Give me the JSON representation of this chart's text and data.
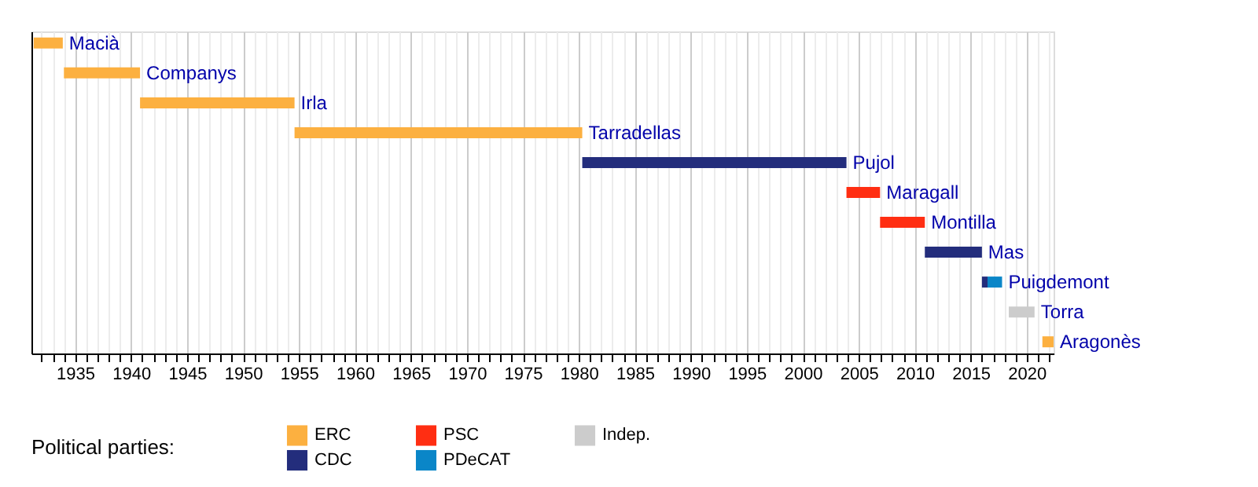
{
  "chart_data": {
    "type": "bar",
    "orientation": "horizontal",
    "categories": [
      "Macià",
      "Companys",
      "Irla",
      "Tarradellas",
      "Pujol",
      "Maragall",
      "Montilla",
      "Mas",
      "Puigdemont",
      "Torra",
      "Aragonès"
    ],
    "series": [
      {
        "name": "ERC",
        "color": "#fcb040",
        "base": [
          1931.3,
          1934.0,
          1940.8,
          1954.6,
          null,
          null,
          null,
          null,
          null,
          null,
          2021.4
        ],
        "values": [
          2.6,
          6.8,
          13.8,
          25.7,
          null,
          null,
          null,
          null,
          null,
          null,
          1.0
        ]
      },
      {
        "name": "PSC",
        "color": "#ff2e12",
        "base": [
          null,
          null,
          null,
          null,
          null,
          2003.9,
          2006.9,
          null,
          null,
          null,
          null
        ],
        "values": [
          null,
          null,
          null,
          null,
          null,
          3.0,
          4.0,
          null,
          null,
          null,
          null
        ]
      },
      {
        "name": "Indep.",
        "color": "#cccccc",
        "base": [
          null,
          null,
          null,
          null,
          null,
          null,
          null,
          null,
          null,
          2018.4,
          null
        ],
        "values": [
          null,
          null,
          null,
          null,
          null,
          null,
          null,
          null,
          null,
          2.3,
          null
        ]
      },
      {
        "name": "CDC",
        "color": "#232d7c",
        "base": [
          null,
          null,
          null,
          null,
          1980.3,
          null,
          null,
          2010.9,
          2016.0,
          null,
          null
        ],
        "values": [
          null,
          null,
          null,
          null,
          23.6,
          null,
          null,
          5.1,
          0.5,
          null,
          null
        ]
      },
      {
        "name": "PDeCAT",
        "color": "#0a86c8",
        "base": [
          null,
          null,
          null,
          null,
          null,
          null,
          null,
          null,
          2016.5,
          null,
          null
        ],
        "values": [
          null,
          null,
          null,
          null,
          null,
          null,
          null,
          null,
          1.3,
          null,
          null
        ]
      }
    ],
    "xlim": [
      1931.1,
      2022.4
    ],
    "xticks": [
      {
        "value": 1932,
        "label": null
      },
      {
        "value": 1933,
        "label": null
      },
      {
        "value": 1934,
        "label": null
      },
      1935,
      {
        "value": 1936,
        "label": null
      },
      {
        "value": 1937,
        "label": null
      },
      {
        "value": 1938,
        "label": null
      },
      {
        "value": 1939,
        "label": null
      },
      1940,
      {
        "value": 1941,
        "label": null
      },
      {
        "value": 1942,
        "label": null
      },
      {
        "value": 1943,
        "label": null
      },
      {
        "value": 1944,
        "label": null
      },
      1945,
      {
        "value": 1946,
        "label": null
      },
      {
        "value": 1947,
        "label": null
      },
      {
        "value": 1948,
        "label": null
      },
      {
        "value": 1949,
        "label": null
      },
      1950,
      {
        "value": 1951,
        "label": null
      },
      {
        "value": 1952,
        "label": null
      },
      {
        "value": 1953,
        "label": null
      },
      {
        "value": 1954,
        "label": null
      },
      1955,
      {
        "value": 1956,
        "label": null
      },
      {
        "value": 1957,
        "label": null
      },
      {
        "value": 1958,
        "label": null
      },
      {
        "value": 1959,
        "label": null
      },
      1960,
      {
        "value": 1961,
        "label": null
      },
      {
        "value": 1962,
        "label": null
      },
      {
        "value": 1963,
        "label": null
      },
      {
        "value": 1964,
        "label": null
      },
      1965,
      {
        "value": 1966,
        "label": null
      },
      {
        "value": 1967,
        "label": null
      },
      {
        "value": 1968,
        "label": null
      },
      {
        "value": 1969,
        "label": null
      },
      1970,
      {
        "value": 1971,
        "label": null
      },
      {
        "value": 1972,
        "label": null
      },
      {
        "value": 1973,
        "label": null
      },
      {
        "value": 1974,
        "label": null
      },
      1975,
      {
        "value": 1976,
        "label": null
      },
      {
        "value": 1977,
        "label": null
      },
      {
        "value": 1978,
        "label": null
      },
      {
        "value": 1979,
        "label": null
      },
      1980,
      {
        "value": 1981,
        "label": null
      },
      {
        "value": 1982,
        "label": null
      },
      {
        "value": 1983,
        "label": null
      },
      {
        "value": 1984,
        "label": null
      },
      1985,
      {
        "value": 1986,
        "label": null
      },
      {
        "value": 1987,
        "label": null
      },
      {
        "value": 1988,
        "label": null
      },
      {
        "value": 1989,
        "label": null
      },
      1990,
      {
        "value": 1991,
        "label": null
      },
      {
        "value": 1992,
        "label": null
      },
      {
        "value": 1993,
        "label": null
      },
      {
        "value": 1994,
        "label": null
      },
      1995,
      {
        "value": 1996,
        "label": null
      },
      {
        "value": 1997,
        "label": null
      },
      {
        "value": 1998,
        "label": null
      },
      {
        "value": 1999,
        "label": null
      },
      2000,
      {
        "value": 2001,
        "label": null
      },
      {
        "value": 2002,
        "label": null
      },
      {
        "value": 2003,
        "label": null
      },
      {
        "value": 2004,
        "label": null
      },
      2005,
      {
        "value": 2006,
        "label": null
      },
      {
        "value": 2007,
        "label": null
      },
      {
        "value": 2008,
        "label": null
      },
      {
        "value": 2009,
        "label": null
      },
      2010,
      {
        "value": 2011,
        "label": null
      },
      {
        "value": 2012,
        "label": null
      },
      {
        "value": 2013,
        "label": null
      },
      {
        "value": 2014,
        "label": null
      },
      2015,
      {
        "value": 2016,
        "label": null
      },
      {
        "value": 2017,
        "label": null
      },
      {
        "value": 2018,
        "label": null
      },
      {
        "value": 2019,
        "label": null
      },
      2020,
      {
        "value": 2021,
        "label": null
      },
      {
        "value": 2022,
        "label": null
      }
    ],
    "grid": "x",
    "tick_labels": "x",
    "legend": "bottom left",
    "legend_title": "Political parties:"
  }
}
